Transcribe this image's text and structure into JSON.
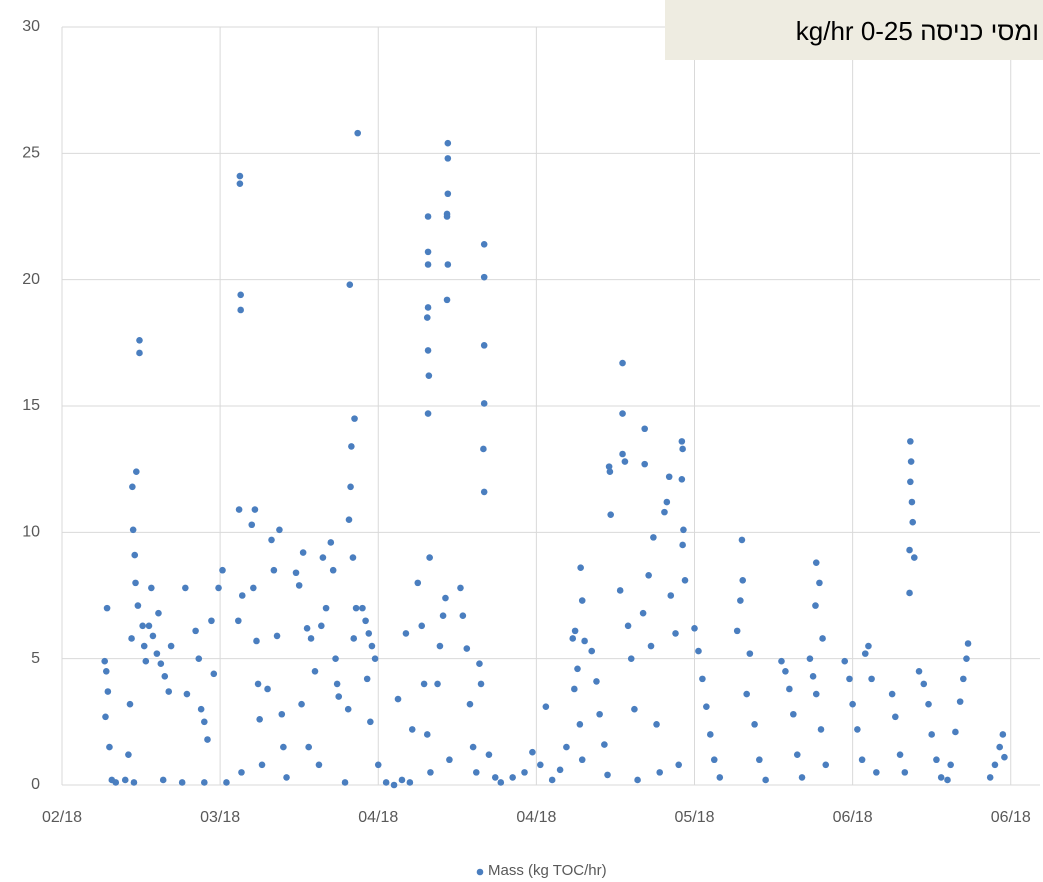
{
  "chart_data": {
    "type": "scatter",
    "title": "ומסי כניסה 0-25 kg/hr",
    "x": [
      5.4,
      5.6,
      5.8,
      5.5,
      5.7,
      6.0,
      6.3,
      6.8,
      8.0,
      8.4,
      8.6,
      8.8,
      8.9,
      9.4,
      9.0,
      9.2,
      9.3,
      9.8,
      9.8,
      9.6,
      10.2,
      10.4,
      10.6,
      9.1,
      11.0,
      11.5,
      12.0,
      12.5,
      13.0,
      13.5,
      11.3,
      12.2,
      13.8,
      12.8,
      15.6,
      15.8,
      15.2,
      16.9,
      17.3,
      17.6,
      18.0,
      18.4,
      18.9,
      19.2,
      18.0,
      19.8,
      20.3,
      20.8,
      22.5,
      22.5,
      22.6,
      22.6,
      22.4,
      22.8,
      22.3,
      22.7,
      24.4,
      24.0,
      24.2,
      24.6,
      24.8,
      25.0,
      25.3,
      26.5,
      27.5,
      26.8,
      27.2,
      26.0,
      27.8,
      28.0,
      28.4,
      29.6,
      30.5,
      30.0,
      31.0,
      31.5,
      32.0,
      30.3,
      31.2,
      32.5,
      33.0,
      33.4,
      32.8,
      34.0,
      34.3,
      34.6,
      34.8,
      35.0,
      36.4,
      37.0,
      36.6,
      36.5,
      36.3,
      36.8,
      37.2,
      36.9,
      36.2,
      35.8,
      37.4,
      38.0,
      38.4,
      38.8,
      39.2,
      39.6,
      38.6,
      39.0,
      40.0,
      41.0,
      42.0,
      43.0,
      44.0,
      43.5,
      42.5,
      44.3,
      45.0,
      45.5,
      45.8,
      46.2,
      46.6,
      46.3,
      46.3,
      46.3,
      46.3,
      46.2,
      46.3,
      46.4,
      46.3,
      46.5,
      47.8,
      48.2,
      48.5,
      47.5,
      49.0,
      48.8,
      48.8,
      48.8,
      48.7,
      48.7,
      48.8,
      48.7,
      50.4,
      50.7,
      51.2,
      51.6,
      52.0,
      52.4,
      53.4,
      53.4,
      53.4,
      53.4,
      53.3,
      53.4,
      52.8,
      53.0,
      54.0,
      54.8,
      55.5,
      57.0,
      58.5,
      59.5,
      60.5,
      61.2,
      62.0,
      63.0,
      63.8,
      64.9,
      64.6,
      65.2,
      64.8,
      65.5,
      65.8,
      65.6,
      65.8,
      66.1,
      67.0,
      67.6,
      68.0,
      68.6,
      69.0,
      69.2,
      69.3,
      69.4,
      70.9,
      70.9,
      70.9,
      71.2,
      70.6,
      71.6,
      72.0,
      72.4,
      72.8,
      73.7,
      73.7,
      74.8,
      74.2,
      73.5,
      74.5,
      75.2,
      75.6,
      76.8,
      76.5,
      76.2,
      77.0,
      77.6,
      78.0,
      78.4,
      78.5,
      78.4,
      78.6,
      78.5,
      78.8,
      80.0,
      80.5,
      81.0,
      81.5,
      82.0,
      82.5,
      83.2,
      86.0,
      86.1,
      85.8,
      85.4,
      87.0,
      86.6,
      87.6,
      88.2,
      89.0,
      91.0,
      91.5,
      92.0,
      92.5,
      93.0,
      93.6,
      94.6,
      95.0,
      95.4,
      96.0,
      96.6,
      95.4,
      95.8,
      95.3,
      96.2,
      99.0,
      99.6,
      100.0,
      100.6,
      101.2,
      102.0,
      101.6,
      102.4,
      103.0,
      105.0,
      105.4,
      106.0,
      106.6,
      107.3,
      107.4,
      107.3,
      107.5,
      107.6,
      107.2,
      107.2,
      107.8,
      108.4,
      109.0,
      109.6,
      110.0,
      110.6,
      111.2,
      114.6,
      114.4,
      114.0,
      113.6,
      113.0,
      112.4,
      112.0,
      119.0,
      118.6,
      118.0,
      119.2,
      117.4
    ],
    "series": [
      {
        "name": "Mass (kg TOC/hr)",
        "color": "#4a7ebf",
        "values": [
          4.9,
          4.5,
          3.7,
          2.7,
          7.0,
          1.5,
          0.2,
          0.1,
          0.2,
          1.2,
          3.2,
          5.8,
          11.8,
          12.4,
          10.1,
          9.1,
          8.0,
          17.6,
          17.1,
          7.1,
          6.3,
          5.5,
          4.9,
          0.1,
          6.3,
          5.9,
          5.2,
          4.8,
          4.3,
          3.7,
          7.8,
          6.8,
          5.5,
          0.2,
          7.8,
          3.6,
          0.1,
          6.1,
          5.0,
          3.0,
          2.5,
          1.8,
          6.5,
          4.4,
          0.1,
          7.8,
          8.5,
          0.1,
          24.1,
          23.8,
          19.4,
          18.8,
          10.9,
          7.5,
          6.5,
          0.5,
          10.9,
          10.3,
          7.8,
          5.7,
          4.0,
          2.6,
          0.8,
          9.7,
          10.1,
          8.5,
          5.9,
          3.8,
          2.8,
          1.5,
          0.3,
          8.4,
          9.2,
          7.9,
          6.2,
          5.8,
          4.5,
          3.2,
          1.5,
          0.8,
          9.0,
          7.0,
          6.3,
          9.6,
          8.5,
          5.0,
          4.0,
          3.5,
          19.8,
          14.5,
          13.4,
          11.8,
          10.5,
          9.0,
          7.0,
          5.8,
          3.0,
          0.1,
          25.8,
          7.0,
          6.5,
          6.0,
          5.5,
          5.0,
          4.2,
          2.5,
          0.8,
          0.1,
          0.0,
          0.2,
          0.1,
          6.0,
          3.4,
          2.2,
          8.0,
          6.3,
          4.0,
          2.0,
          0.5,
          22.5,
          21.1,
          20.6,
          18.9,
          18.5,
          17.2,
          16.2,
          14.7,
          9.0,
          5.5,
          6.7,
          7.4,
          4.0,
          1.0,
          25.4,
          24.8,
          23.4,
          22.6,
          22.5,
          20.6,
          19.2,
          7.8,
          6.7,
          5.4,
          3.2,
          1.5,
          0.5,
          21.4,
          20.1,
          17.4,
          15.1,
          13.3,
          11.6,
          4.8,
          4.0,
          1.2,
          0.3,
          0.1,
          0.3,
          0.5,
          1.3,
          0.8,
          3.1,
          0.2,
          0.6,
          1.5,
          6.1,
          5.8,
          4.6,
          3.8,
          2.4,
          1.0,
          8.6,
          7.3,
          5.7,
          5.3,
          4.1,
          2.8,
          1.6,
          0.4,
          12.6,
          12.4,
          10.7,
          16.7,
          14.7,
          13.1,
          12.8,
          7.7,
          6.3,
          5.0,
          3.0,
          0.2,
          14.1,
          12.7,
          9.8,
          8.3,
          6.8,
          5.5,
          2.4,
          0.5,
          12.2,
          11.2,
          10.8,
          7.5,
          6.0,
          0.8,
          13.6,
          13.3,
          12.1,
          10.1,
          9.5,
          8.1,
          6.2,
          5.3,
          4.2,
          3.1,
          2.0,
          1.0,
          0.3,
          9.7,
          8.1,
          7.3,
          6.1,
          5.2,
          3.6,
          2.4,
          1.0,
          0.2,
          4.9,
          4.5,
          3.8,
          2.8,
          1.2,
          0.3,
          5.0,
          4.3,
          3.6,
          2.2,
          0.8,
          8.8,
          8.0,
          7.1,
          5.8,
          4.9,
          4.2,
          3.2,
          2.2,
          1.0,
          5.5,
          5.2,
          4.2,
          0.5,
          3.6,
          2.7,
          1.2,
          0.5,
          13.6,
          12.8,
          12.0,
          11.2,
          10.4,
          9.3,
          7.6,
          9.0,
          4.5,
          4.0,
          3.2,
          2.0,
          1.0,
          0.3,
          5.6,
          5.0,
          4.2,
          3.3,
          2.1,
          0.8,
          0.2,
          2.0,
          1.5,
          0.8,
          1.1,
          0.3
        ]
      }
    ],
    "xlim": [
      0,
      123.7
    ],
    "xticks": [
      {
        "value": 0,
        "label": "02/18"
      },
      {
        "value": 20,
        "label": "03/18"
      },
      {
        "value": 40,
        "label": "04/18"
      },
      {
        "value": 60,
        "label": "04/18"
      },
      {
        "value": 80,
        "label": "05/18"
      },
      {
        "value": 100,
        "label": "06/18"
      },
      {
        "value": 120,
        "label": "06/18"
      }
    ],
    "ylim": [
      0,
      30
    ],
    "yticks": [
      0,
      5,
      10,
      15,
      20,
      25,
      30
    ],
    "grid": true,
    "legend": "bottom"
  }
}
